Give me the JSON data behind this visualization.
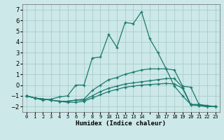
{
  "xlabel": "Humidex (Indice chaleur)",
  "background_color": "#cce8e8",
  "grid_color": "#aacccc",
  "line_color": "#1a7a6e",
  "xlim": [
    -0.5,
    23.5
  ],
  "ylim": [
    -2.5,
    7.5
  ],
  "yticks": [
    -2,
    -1,
    0,
    1,
    2,
    3,
    4,
    5,
    6,
    7
  ],
  "xticks": [
    0,
    1,
    2,
    3,
    4,
    5,
    6,
    7,
    8,
    9,
    10,
    11,
    12,
    13,
    14,
    15,
    16,
    17,
    18,
    19,
    20,
    21,
    22,
    23
  ],
  "xtick_labels": [
    "0",
    "1",
    "2",
    "3",
    "4",
    "5",
    "6",
    "7",
    "8",
    "9",
    "10",
    "11",
    "12",
    "13",
    "14",
    "",
    "16",
    "17",
    "18",
    "19",
    "20",
    "21",
    "22",
    "23"
  ],
  "lines": [
    {
      "x": [
        0,
        1,
        2,
        3,
        4,
        5,
        6,
        7,
        8,
        9,
        10,
        11,
        12,
        13,
        14,
        15,
        16,
        17,
        18,
        19,
        20,
        21,
        22,
        23
      ],
      "y": [
        -1.0,
        -1.2,
        -1.4,
        -1.3,
        -1.1,
        -1.0,
        0.0,
        0.0,
        2.5,
        2.6,
        4.7,
        3.5,
        5.8,
        5.7,
        6.8,
        4.3,
        3.0,
        1.5,
        -0.1,
        -1.0,
        -1.8,
        -1.8,
        -2.0,
        -2.0
      ]
    },
    {
      "x": [
        0,
        1,
        2,
        3,
        4,
        5,
        6,
        7,
        8,
        9,
        10,
        11,
        12,
        13,
        14,
        15,
        16,
        17,
        18,
        19,
        20,
        21,
        22,
        23
      ],
      "y": [
        -1.0,
        -1.2,
        -1.3,
        -1.4,
        -1.5,
        -1.5,
        -1.4,
        -1.3,
        -0.5,
        0.0,
        0.5,
        0.7,
        1.0,
        1.2,
        1.4,
        1.5,
        1.5,
        1.5,
        1.4,
        -0.1,
        -0.2,
        -1.8,
        -1.9,
        -2.0
      ]
    },
    {
      "x": [
        0,
        1,
        2,
        3,
        4,
        5,
        6,
        7,
        8,
        9,
        10,
        11,
        12,
        13,
        14,
        15,
        16,
        17,
        18,
        19,
        20,
        21,
        22,
        23
      ],
      "y": [
        -1.0,
        -1.2,
        -1.3,
        -1.4,
        -1.5,
        -1.5,
        -1.4,
        -1.4,
        -1.0,
        -0.6,
        -0.3,
        -0.1,
        0.1,
        0.2,
        0.3,
        0.4,
        0.5,
        0.6,
        0.6,
        -0.2,
        -1.8,
        -1.9,
        -2.0,
        -2.0
      ]
    },
    {
      "x": [
        0,
        1,
        2,
        3,
        4,
        5,
        6,
        7,
        8,
        9,
        10,
        11,
        12,
        13,
        14,
        15,
        16,
        17,
        18,
        19,
        20,
        21,
        22,
        23
      ],
      "y": [
        -1.0,
        -1.2,
        -1.3,
        -1.4,
        -1.5,
        -1.6,
        -1.6,
        -1.5,
        -1.2,
        -0.9,
        -0.6,
        -0.4,
        -0.2,
        -0.1,
        0.0,
        0.05,
        0.1,
        0.15,
        0.1,
        -0.3,
        -1.85,
        -1.9,
        -2.0,
        -2.0
      ]
    }
  ]
}
